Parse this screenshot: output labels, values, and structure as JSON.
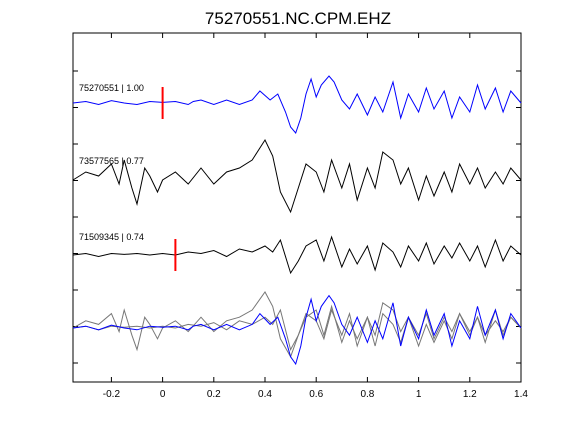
{
  "chart_data": {
    "type": "line",
    "title": "75270551.NC.CPM.EHZ",
    "xlabel": "",
    "ylabel": "",
    "xlim": [
      -0.35,
      1.4
    ],
    "xticks": [
      -0.2,
      0,
      0.2,
      0.4,
      0.6,
      0.8,
      1,
      1.2,
      1.4
    ],
    "xtick_labels": [
      "-0.2",
      "0",
      "0.2",
      "0.4",
      "0.6",
      "0.8",
      "1",
      "1.2",
      "1.4"
    ],
    "grid": false,
    "colors": {
      "reference": "#0000ff",
      "other": "#000000",
      "overlay_other": "#777777",
      "pick": "#ff0000"
    },
    "series": [
      {
        "name": "75270551 | 1.00",
        "color": "#0000ff",
        "pick_time": 0.0,
        "x": [
          -0.35,
          -0.3,
          -0.25,
          -0.2,
          -0.15,
          -0.1,
          -0.05,
          0.0,
          0.05,
          0.1,
          0.12,
          0.15,
          0.2,
          0.25,
          0.3,
          0.35,
          0.38,
          0.42,
          0.45,
          0.48,
          0.5,
          0.52,
          0.54,
          0.56,
          0.58,
          0.6,
          0.62,
          0.65,
          0.67,
          0.7,
          0.73,
          0.76,
          0.8,
          0.83,
          0.86,
          0.9,
          0.93,
          0.96,
          1.0,
          1.03,
          1.06,
          1.1,
          1.13,
          1.16,
          1.2,
          1.23,
          1.26,
          1.3,
          1.33,
          1.36,
          1.4
        ],
        "y": [
          0.0,
          0.05,
          -0.05,
          0.08,
          0.0,
          -0.05,
          0.05,
          0.02,
          0.05,
          -0.05,
          0.05,
          0.1,
          -0.05,
          0.1,
          -0.05,
          0.1,
          0.4,
          0.1,
          0.3,
          -0.3,
          -0.8,
          -1.0,
          -0.5,
          0.3,
          0.8,
          0.2,
          0.6,
          0.9,
          0.7,
          0.1,
          -0.2,
          0.3,
          -0.4,
          0.2,
          -0.3,
          0.7,
          -0.5,
          0.3,
          -0.3,
          0.5,
          -0.2,
          0.4,
          -0.5,
          0.2,
          -0.3,
          0.6,
          -0.2,
          0.5,
          -0.3,
          0.4,
          0.0
        ]
      },
      {
        "name": "73577565 | 0.77",
        "color": "#000000",
        "x": [
          -0.35,
          -0.3,
          -0.25,
          -0.2,
          -0.17,
          -0.15,
          -0.12,
          -0.1,
          -0.07,
          -0.05,
          -0.02,
          0.0,
          0.05,
          0.1,
          0.15,
          0.2,
          0.25,
          0.3,
          0.35,
          0.4,
          0.43,
          0.46,
          0.5,
          0.53,
          0.56,
          0.6,
          0.63,
          0.66,
          0.7,
          0.73,
          0.76,
          0.8,
          0.83,
          0.86,
          0.9,
          0.93,
          0.96,
          1.0,
          1.03,
          1.06,
          1.1,
          1.13,
          1.16,
          1.2,
          1.23,
          1.26,
          1.3,
          1.33,
          1.36,
          1.4
        ],
        "y": [
          0.0,
          0.2,
          0.1,
          0.4,
          -0.1,
          0.5,
          -0.2,
          -0.6,
          0.3,
          0.1,
          -0.3,
          0.0,
          0.2,
          -0.1,
          0.3,
          -0.1,
          0.2,
          0.3,
          0.5,
          1.0,
          0.6,
          -0.3,
          -0.8,
          -0.2,
          0.4,
          0.2,
          -0.3,
          0.5,
          -0.2,
          0.4,
          -0.5,
          0.3,
          -0.2,
          0.7,
          0.5,
          -0.1,
          0.3,
          -0.5,
          0.1,
          -0.4,
          0.2,
          -0.3,
          0.4,
          -0.1,
          0.3,
          -0.2,
          0.2,
          -0.1,
          0.3,
          0.0
        ]
      },
      {
        "name": "71509345 | 0.74",
        "color": "#000000",
        "pick_time": 0.05,
        "x": [
          -0.35,
          -0.3,
          -0.25,
          -0.2,
          -0.15,
          -0.1,
          -0.05,
          0.0,
          0.05,
          0.1,
          0.15,
          0.2,
          0.25,
          0.3,
          0.35,
          0.4,
          0.43,
          0.46,
          0.5,
          0.53,
          0.56,
          0.6,
          0.63,
          0.66,
          0.7,
          0.73,
          0.76,
          0.8,
          0.83,
          0.86,
          0.9,
          0.93,
          0.96,
          1.0,
          1.03,
          1.06,
          1.1,
          1.13,
          1.16,
          1.2,
          1.23,
          1.26,
          1.3,
          1.33,
          1.36,
          1.4
        ],
        "y": [
          0.0,
          0.05,
          -0.05,
          0.05,
          0.02,
          0.05,
          0.0,
          0.05,
          0.0,
          0.1,
          0.05,
          0.15,
          -0.05,
          0.2,
          0.1,
          0.3,
          0.1,
          0.5,
          -0.6,
          -0.2,
          0.3,
          0.5,
          -0.2,
          0.6,
          -0.4,
          0.2,
          -0.3,
          0.3,
          -0.5,
          0.4,
          0.1,
          -0.4,
          0.3,
          -0.2,
          0.4,
          -0.3,
          0.3,
          -0.1,
          0.4,
          -0.2,
          0.3,
          -0.4,
          0.5,
          -0.2,
          0.3,
          0.0
        ]
      }
    ]
  }
}
